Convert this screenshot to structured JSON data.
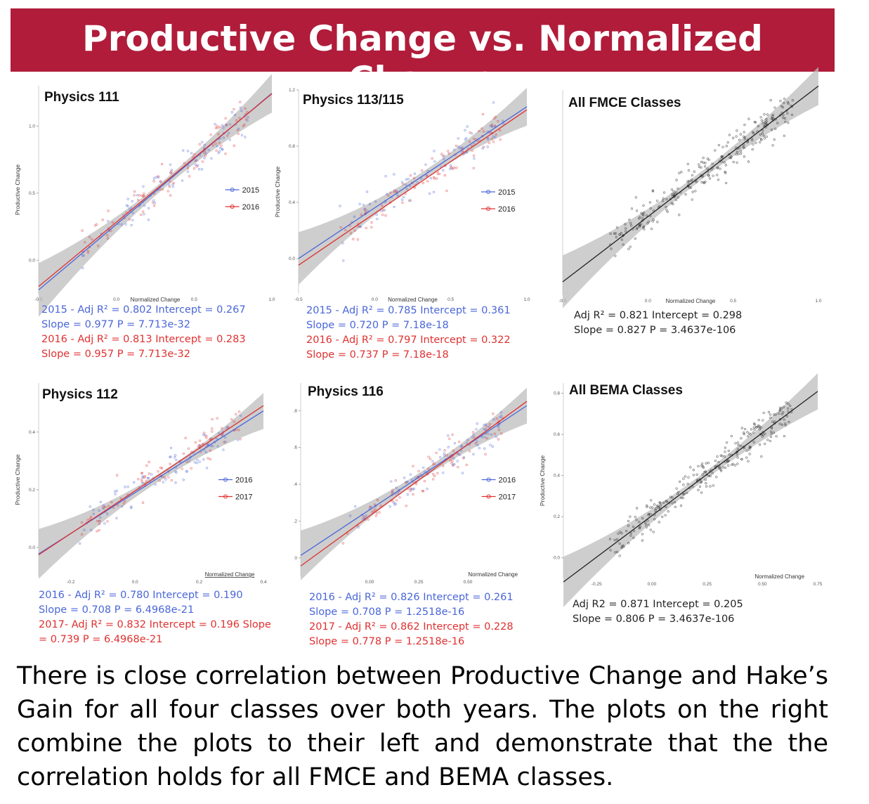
{
  "title": "Productive Change vs. Normalized Change",
  "colors": {
    "banner": "#b01c3a",
    "blue": "#4a66d9",
    "red": "#e03030",
    "black": "#222222",
    "band": "#bdbdbd"
  },
  "panels": [
    {
      "key": "p111",
      "title": "Physics 111",
      "stats": [
        {
          "text": "2015 - Adj R² =  0.802 Intercept = 0.267",
          "color": "blue"
        },
        {
          "text": "Slope = 0.977  P = 7.713e-32",
          "color": "blue"
        },
        {
          "text": "2016 - Adj R² =  0.813 Intercept = 0.283",
          "color": "red"
        },
        {
          "text": "Slope = 0.957  P = 7.713e-32",
          "color": "red"
        }
      ]
    },
    {
      "key": "p113",
      "title": "Physics 113/115",
      "stats": [
        {
          "text": "2015 - Adj R² =  0.785 Intercept = 0.361",
          "color": "blue"
        },
        {
          "text": "Slope = 0.720  P = 7.18e-18",
          "color": "blue"
        },
        {
          "text": "2016 - Adj R² =  0.797 Intercept = 0.322",
          "color": "red"
        },
        {
          "text": "Slope = 0.737  P = 7.18e-18",
          "color": "red"
        }
      ]
    },
    {
      "key": "pfmce",
      "title": "All FMCE Classes",
      "stats": [
        {
          "text": "Adj R² =  0.821 Intercept = 0.298",
          "color": "black"
        },
        {
          "text": "Slope = 0.827  P = 3.4637e-106",
          "color": "black"
        }
      ]
    },
    {
      "key": "p112",
      "title": "Physics 112",
      "stats": [
        {
          "text": "2016 - Adj R² =  0.780 Intercept = 0.190",
          "color": "blue"
        },
        {
          "text": "Slope = 0.708  P = 6.4968e-21",
          "color": "blue"
        },
        {
          "text": "2017- Adj R² =  0.832 Intercept = 0.196  Slope",
          "color": "red"
        },
        {
          "text": "= 0.739  P = 6.4968e-21",
          "color": "red"
        }
      ]
    },
    {
      "key": "p116",
      "title": "Physics 116",
      "stats": [
        {
          "text": "2016 - Adj R² =  0.826 Intercept = 0.261",
          "color": "blue"
        },
        {
          "text": "Slope = 0.708  P = 1.2518e-16",
          "color": "blue"
        },
        {
          "text": "2017 - Adj R² =  0.862 Intercept = 0.228",
          "color": "red"
        },
        {
          "text": "Slope = 0.778  P = 1.2518e-16",
          "color": "red"
        }
      ]
    },
    {
      "key": "pbema",
      "title": "All BEMA Classes",
      "stats": [
        {
          "text": "Adj R2 =  0.871 Intercept = 0.205",
          "color": "black"
        },
        {
          "text": "Slope = 0.806  P = 3.4637e-106",
          "color": "black"
        }
      ]
    }
  ],
  "caption": "There is close correlation between Productive Change and Hake’s Gain for all four classes over both years. The plots on the right combine the plots to their left and demonstrate that the the correlation holds for all FMCE and BEMA classes.",
  "chart_data": [
    {
      "type": "scatter",
      "title": "Physics 111",
      "xlabel": "Normalized Change",
      "ylabel": "Productive Change",
      "xlim": [
        -0.5,
        1.0
      ],
      "ylim": [
        -0.25,
        1.3
      ],
      "xticks": [
        "-0.5",
        "0.0",
        "0.5",
        "1.0"
      ],
      "yticks": [
        "0.0",
        "0.5",
        "1.0"
      ],
      "legend": "right",
      "series": [
        {
          "name": "2015",
          "color": "blue",
          "intercept": 0.267,
          "slope": 0.977
        },
        {
          "name": "2016",
          "color": "red",
          "intercept": 0.283,
          "slope": 0.957
        }
      ]
    },
    {
      "type": "scatter",
      "title": "Physics 113/115",
      "xlabel": "Normalized Change",
      "ylabel": "Productive Change",
      "xlim": [
        -0.5,
        1.0
      ],
      "ylim": [
        -0.25,
        1.2
      ],
      "xticks": [
        "-0.5",
        "0.0",
        "0.5",
        "1.0"
      ],
      "yticks": [
        "0.0",
        "0.4",
        "0.8",
        "1.2"
      ],
      "legend": "right",
      "series": [
        {
          "name": "2015",
          "color": "blue",
          "intercept": 0.361,
          "slope": 0.72
        },
        {
          "name": "2016",
          "color": "red",
          "intercept": 0.322,
          "slope": 0.737
        }
      ]
    },
    {
      "type": "scatter",
      "title": "All FMCE Classes",
      "xlabel": "Normalized Change",
      "ylabel": "",
      "xlim": [
        -0.5,
        1.0
      ],
      "ylim": [
        -0.2,
        1.1
      ],
      "xticks": [
        "-0.5",
        "0.0",
        "0.5",
        "1.0"
      ],
      "yticks": [],
      "legend": "none",
      "series": [
        {
          "color": "black",
          "intercept": 0.298,
          "slope": 0.827
        }
      ]
    },
    {
      "type": "scatter",
      "title": "Physics 112",
      "xlabel": "Normalized Change",
      "ylabel": "Productive Change",
      "xlim": [
        -0.3,
        0.4
      ],
      "ylim": [
        -0.1,
        0.57
      ],
      "xticks": [
        "-0.2",
        "0.0",
        "0.2",
        "0.4"
      ],
      "yticks": [
        "0.0",
        "0.2",
        "0.4"
      ],
      "legend": "right",
      "series": [
        {
          "name": "2016",
          "color": "blue",
          "intercept": 0.19,
          "slope": 0.708
        },
        {
          "name": "2017",
          "color": "red",
          "intercept": 0.196,
          "slope": 0.739
        }
      ]
    },
    {
      "type": "scatter",
      "title": "Physics 116",
      "xlabel": "Normalized Change",
      "ylabel": "",
      "xlim": [
        -0.35,
        0.8
      ],
      "ylim": [
        -0.1,
        0.95
      ],
      "xticks": [
        "0.00",
        "0.25",
        "0.50"
      ],
      "yticks": [
        "0",
        ".2",
        ".4",
        ".6",
        ".8"
      ],
      "legend": "right",
      "series": [
        {
          "name": "2016",
          "color": "blue",
          "intercept": 0.261,
          "slope": 0.708
        },
        {
          "name": "2017",
          "color": "red",
          "intercept": 0.228,
          "slope": 0.778
        }
      ]
    },
    {
      "type": "scatter",
      "title": "All BEMA Classes",
      "xlabel": "Normalized Change",
      "ylabel": "Productive Change",
      "xlim": [
        -0.4,
        0.75
      ],
      "ylim": [
        -0.1,
        0.85
      ],
      "xticks": [
        "-0.25",
        "0.00",
        "0.25",
        "0.50",
        "0.75"
      ],
      "yticks": [
        "0.0",
        "0.2",
        "0.4",
        "0.6",
        "0.8"
      ],
      "legend": "none",
      "series": [
        {
          "color": "black",
          "intercept": 0.205,
          "slope": 0.806
        }
      ]
    }
  ]
}
